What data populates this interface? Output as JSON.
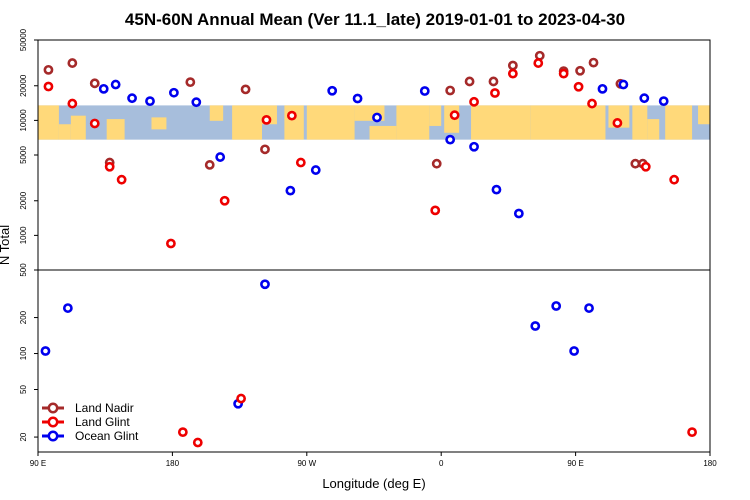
{
  "chart_data": {
    "type": "scatter",
    "title": "45N-60N Annual Mean (Ver 11.1_late)   2019-01-01 to 2023-04-30",
    "xlabel": "Longitude (deg E)",
    "ylabel": "N Total",
    "x_ticks": [
      {
        "value": 90,
        "label": "90 E"
      },
      {
        "value": 180,
        "label": "180"
      },
      {
        "value": 270,
        "label": "90 W"
      },
      {
        "value": 360,
        "label": "0"
      },
      {
        "value": 450,
        "label": "90 E"
      },
      {
        "value": 540,
        "label": "180"
      }
    ],
    "xlim": [
      90,
      540
    ],
    "upper_panel": {
      "yscale": "log",
      "ylim": [
        500,
        50000
      ],
      "y_ticks": [
        "1000",
        "2000",
        "5000",
        "10000",
        "20000",
        "50000"
      ],
      "y_tick_values": [
        1000,
        2000,
        5000,
        10000,
        20000,
        50000
      ],
      "map_band": {
        "lat_range": "45N-60N",
        "y_from": 6800,
        "y_to": 13500
      }
    },
    "lower_panel": {
      "yscale": "log",
      "ylim": [
        15,
        500
      ],
      "y_ticks": [
        "20",
        "50",
        "100",
        "200",
        "500"
      ],
      "y_tick_values": [
        20,
        50,
        100,
        200,
        500
      ]
    },
    "series": [
      {
        "name": "Land Nadir",
        "color": "#a52a2a",
        "x": [
          97,
          113,
          128,
          138,
          192,
          205,
          229,
          242,
          357,
          366,
          379,
          395,
          408,
          426,
          442,
          453,
          462,
          480,
          490,
          495
        ],
        "y": [
          27500,
          31500,
          21000,
          4300,
          21500,
          4100,
          18600,
          5600,
          4200,
          18200,
          21800,
          21800,
          30000,
          36500,
          26800,
          27000,
          31800,
          20800,
          4200,
          4200
        ]
      },
      {
        "name": "Land Glint",
        "color": "#ee0000",
        "x": [
          97,
          113,
          128,
          138,
          146,
          179,
          187,
          197,
          215,
          243,
          260,
          266,
          356,
          369,
          382,
          396,
          408,
          425,
          442,
          452,
          461,
          478,
          497,
          516,
          528
        ],
        "y": [
          19700,
          14000,
          9400,
          3950,
          3050,
          850,
          22,
          18,
          2000,
          10100,
          11000,
          4300,
          1650,
          11100,
          14500,
          17300,
          25500,
          31500,
          25500,
          19600,
          14000,
          9500,
          3950,
          3050,
          22
        ],
        "panel": [
          "upper",
          "upper",
          "upper",
          "upper",
          "upper",
          "upper",
          "lower",
          "lower",
          "upper",
          "upper",
          "upper",
          "upper",
          "upper",
          "upper",
          "upper",
          "upper",
          "upper",
          "upper",
          "upper",
          "upper",
          "upper",
          "upper",
          "upper",
          "upper",
          "lower"
        ],
        "lower_indices": [
          6,
          7,
          24
        ]
      },
      {
        "name": "Ocean Glint",
        "color": "#0000ee",
        "x": [
          95,
          110,
          134,
          142,
          153,
          165,
          181,
          196,
          212,
          224,
          242,
          259,
          276,
          287,
          304,
          317,
          349,
          366,
          382,
          397,
          412,
          423,
          437,
          449,
          459,
          468,
          482,
          496,
          509
        ],
        "y": [
          105,
          240,
          18800,
          20500,
          15600,
          14700,
          17400,
          14400,
          4800,
          38,
          380,
          2450,
          3700,
          18100,
          15500,
          10600,
          18000,
          6800,
          5900,
          2500,
          1550,
          170,
          250,
          105,
          240,
          18800,
          20500,
          15600,
          14700
        ],
        "panel": [
          "lower",
          "lower",
          "upper",
          "upper",
          "upper",
          "upper",
          "upper",
          "upper",
          "upper",
          "lower",
          "lower",
          "upper",
          "upper",
          "upper",
          "upper",
          "upper",
          "upper",
          "upper",
          "upper",
          "upper",
          "upper",
          "lower",
          "lower",
          "lower",
          "lower",
          "upper",
          "upper",
          "upper",
          "upper"
        ]
      }
    ],
    "extra_points": {
      "Land Glint": {
        "x": [
          226
        ],
        "y": [
          42
        ],
        "panel": "lower"
      }
    },
    "legend": {
      "placement": "bottom-left",
      "entries": [
        "Land Nadir",
        "Land Glint",
        "Ocean Glint"
      ]
    },
    "colors": {
      "ocean": "#a7bedc",
      "land": "#ffd97a"
    }
  }
}
